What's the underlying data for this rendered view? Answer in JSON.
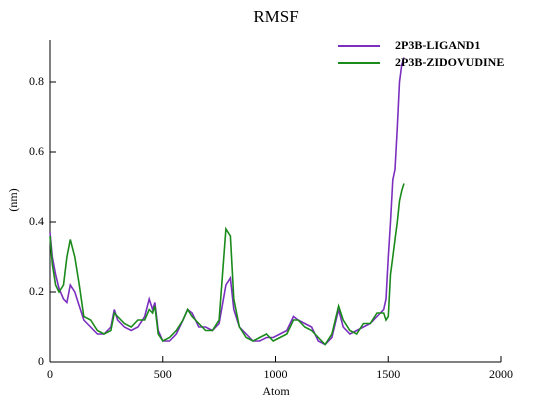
{
  "chart_data": {
    "type": "line",
    "title": "RMSF",
    "x_label": "Atom",
    "y_label": "(nm)",
    "x": [
      0,
      10,
      25,
      40,
      60,
      75,
      90,
      110,
      130,
      150,
      180,
      210,
      240,
      270,
      285,
      300,
      330,
      360,
      390,
      420,
      440,
      455,
      465,
      480,
      500,
      530,
      560,
      590,
      610,
      630,
      660,
      690,
      720,
      750,
      780,
      800,
      815,
      840,
      870,
      900,
      930,
      960,
      990,
      1020,
      1050,
      1080,
      1100,
      1130,
      1160,
      1190,
      1220,
      1250,
      1280,
      1300,
      1330,
      1360,
      1390,
      1420,
      1450,
      1480,
      1490,
      1500,
      1510,
      1520,
      1530,
      1540,
      1550,
      1560,
      1570
    ],
    "series": [
      {
        "name": "2P3B-LIGAND1",
        "color": "#7b2fbe",
        "values": [
          0.37,
          0.3,
          0.25,
          0.21,
          0.18,
          0.17,
          0.22,
          0.2,
          0.16,
          0.12,
          0.1,
          0.08,
          0.08,
          0.1,
          0.15,
          0.12,
          0.1,
          0.09,
          0.1,
          0.13,
          0.18,
          0.15,
          0.17,
          0.09,
          0.06,
          0.06,
          0.08,
          0.12,
          0.15,
          0.14,
          0.1,
          0.1,
          0.09,
          0.11,
          0.22,
          0.24,
          0.15,
          0.1,
          0.08,
          0.06,
          0.06,
          0.07,
          0.07,
          0.08,
          0.09,
          0.13,
          0.12,
          0.11,
          0.1,
          0.06,
          0.05,
          0.07,
          0.15,
          0.1,
          0.08,
          0.09,
          0.1,
          0.11,
          0.13,
          0.15,
          0.18,
          0.3,
          0.4,
          0.52,
          0.55,
          0.67,
          0.8,
          0.85,
          0.87
        ]
      },
      {
        "name": "2P3B-ZIDOVUDINE",
        "color": "#1a8a1a",
        "values": [
          0.36,
          0.28,
          0.22,
          0.2,
          0.22,
          0.3,
          0.35,
          0.3,
          0.22,
          0.13,
          0.12,
          0.09,
          0.08,
          0.09,
          0.14,
          0.13,
          0.11,
          0.1,
          0.12,
          0.12,
          0.15,
          0.14,
          0.16,
          0.08,
          0.06,
          0.07,
          0.09,
          0.12,
          0.15,
          0.13,
          0.11,
          0.09,
          0.09,
          0.12,
          0.38,
          0.36,
          0.18,
          0.1,
          0.07,
          0.06,
          0.07,
          0.08,
          0.06,
          0.07,
          0.08,
          0.12,
          0.12,
          0.1,
          0.09,
          0.07,
          0.05,
          0.08,
          0.16,
          0.12,
          0.09,
          0.08,
          0.11,
          0.11,
          0.14,
          0.14,
          0.12,
          0.13,
          0.25,
          0.3,
          0.35,
          0.4,
          0.46,
          0.49,
          0.51
        ]
      }
    ],
    "xlim": [
      0,
      2000
    ],
    "xticks": [
      0,
      500,
      1000,
      1500,
      2000
    ],
    "ylim": [
      0,
      0.92
    ],
    "yticks": [
      0,
      0.2,
      0.4,
      0.6,
      0.8
    ],
    "legend": "upper right"
  }
}
